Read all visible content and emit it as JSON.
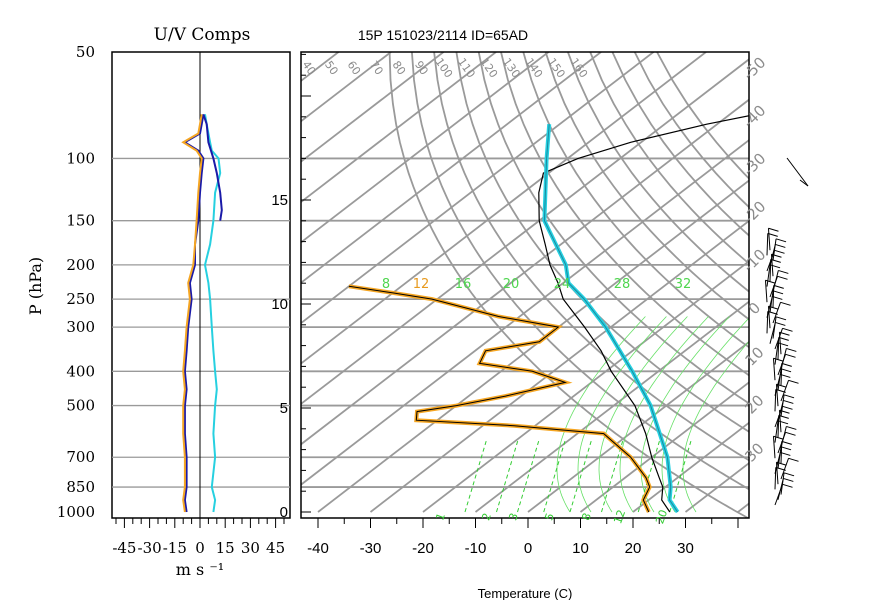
{
  "chart_data": [
    {
      "type": "line",
      "panel": "wind components",
      "title": "U/V Comps",
      "xlabel": "m s ⁻¹",
      "ylabel": "P (hPa)",
      "y_scale": "log",
      "y_reversed": true,
      "ylim": [
        1000,
        50
      ],
      "xlim": [
        -50,
        50
      ],
      "x_ticks": [
        "-45",
        "-30",
        "-15",
        "0",
        "15",
        "30",
        "45"
      ],
      "p_levels": [
        50,
        100,
        150,
        200,
        250,
        300,
        400,
        500,
        700,
        850,
        1000
      ],
      "grid": true,
      "series": [
        {
          "color": "#1a1aa8",
          "p": [
            1000,
            925,
            850,
            700,
            600,
            500,
            450,
            400,
            350,
            300,
            250,
            225,
            200,
            175,
            150,
            125,
            110,
            100,
            95,
            90,
            85,
            80,
            75
          ],
          "values": [
            -8,
            -9,
            -8,
            -8,
            -9,
            -9,
            -8,
            -9,
            -8,
            -7,
            -5,
            -6,
            -3,
            -3,
            -1,
            0,
            1,
            2,
            -1,
            -9,
            0,
            1,
            2
          ]
        },
        {
          "color": "#f5a623",
          "p": [
            1000,
            925,
            850,
            700,
            600,
            500,
            450,
            400,
            350,
            300,
            250,
            225,
            200,
            175,
            150,
            125,
            110,
            100,
            95,
            90,
            85,
            80,
            75
          ],
          "values": [
            -9,
            -10,
            -9,
            -9,
            -10,
            -10,
            -9,
            -10,
            -9,
            -8,
            -6,
            -7,
            -4,
            -3,
            -2,
            -1,
            0,
            1,
            -2,
            -10,
            -1,
            0,
            1
          ]
        },
        {
          "color": "#26d0e0",
          "p": [
            1000,
            925,
            850,
            700,
            600,
            500,
            450,
            400,
            350,
            300,
            250,
            225,
            200,
            175,
            150,
            125,
            110,
            100,
            95,
            90,
            85,
            80,
            75
          ],
          "values": [
            8,
            9,
            7,
            9,
            8,
            9,
            10,
            9,
            8,
            7,
            6,
            5,
            3,
            6,
            8,
            9,
            12,
            11,
            7,
            6,
            5,
            4,
            3
          ]
        },
        {
          "color": "#1a1aa8",
          "p": [
            150,
            140,
            125,
            110,
            100,
            90,
            80,
            75
          ],
          "values": [
            12,
            13,
            12,
            10,
            8,
            5,
            4,
            2
          ]
        }
      ]
    },
    {
      "type": "line",
      "panel": "skew-T log-P",
      "title": "15P 151023/2114 ID=65AD",
      "xlabel": "Temperature (C)",
      "ylabel": "",
      "x_ticks": [
        -40,
        -30,
        -20,
        -10,
        0,
        10,
        20,
        30
      ],
      "height_ticks_km": [
        0,
        5,
        10,
        15
      ],
      "p_range_hpa": [
        1000,
        50
      ],
      "grid": true,
      "theta_labels": [
        "40",
        "50",
        "60",
        "70",
        "80",
        "90",
        "100",
        "110",
        "120",
        "130",
        "140",
        "150",
        "160"
      ],
      "temp_labels": [
        "-50",
        "-40",
        "-30",
        "-20",
        "-10",
        "0",
        "10",
        "20",
        "30"
      ],
      "theta_e_labels": [
        "8",
        "12",
        "16",
        "20",
        "24",
        "28",
        "32"
      ],
      "mixing_ratio_labels": [
        "1",
        "2",
        "3",
        "5",
        "8",
        "12",
        "20"
      ],
      "series": [
        {
          "name": "temperature",
          "color": "#000000",
          "p": [
            1000,
            925,
            850,
            800,
            700,
            600,
            500,
            400,
            350,
            300,
            250,
            225,
            200,
            175,
            150,
            125,
            110,
            100,
            90,
            80,
            75
          ],
          "values": [
            27,
            22.5,
            19.5,
            16.5,
            10,
            3,
            -6,
            -19,
            -26,
            -35,
            -46,
            -51,
            -57,
            -63,
            -70,
            -77,
            -81,
            -78,
            -72,
            -62,
            -55
          ]
        },
        {
          "name": "dewpoint",
          "color": "#f5a623",
          "p": [
            1000,
            925,
            850,
            800,
            700,
            600,
            570,
            550,
            520,
            500,
            470,
            430,
            400,
            380,
            350,
            330,
            300,
            280,
            250,
            240,
            230
          ],
          "values": [
            23,
            19,
            17,
            14,
            6,
            -5,
            -24,
            -44,
            -46,
            -40,
            -33,
            -25,
            -34,
            -46,
            -48,
            -40,
            -40,
            -54,
            -71,
            -80,
            -90
          ]
        },
        {
          "name": "parcel",
          "color": "#26d0e0",
          "p": [
            1000,
            925,
            850,
            700,
            500,
            400,
            300,
            250,
            225,
            200,
            150,
            100,
            80
          ],
          "values": [
            28.5,
            24,
            21,
            13,
            -3,
            -15,
            -31,
            -42,
            -49,
            -54,
            -69,
            -84,
            -92
          ]
        }
      ]
    }
  ]
}
